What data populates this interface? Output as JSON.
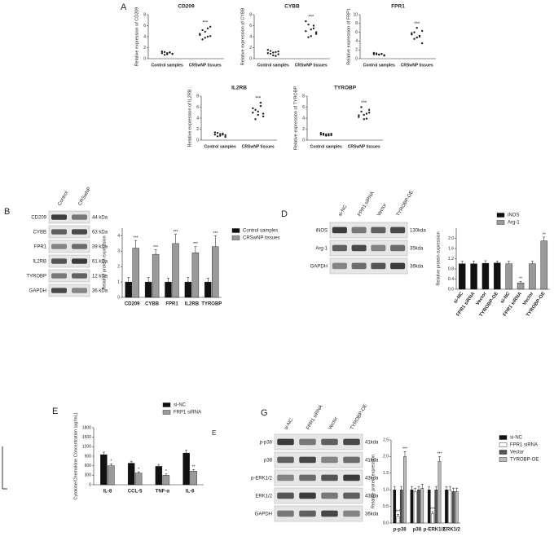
{
  "panel_labels": [
    "A",
    "B",
    "D",
    "E",
    "G",
    "E"
  ],
  "blots": [
    {
      "lanes": [
        "Control",
        "CRSwNP"
      ],
      "rows": [
        {
          "name": "CD209",
          "size": "44 kDa"
        },
        {
          "name": "CYBB",
          "size": "63 kDa"
        },
        {
          "name": "FPR1",
          "size": "39 kDa"
        },
        {
          "name": "IL2RB",
          "size": "61 kDa"
        },
        {
          "name": "TYROBP",
          "size": "12 kDa"
        },
        {
          "name": "GAPDH",
          "size": "36 kDa"
        }
      ]
    },
    {
      "lanes": [
        "si-NC",
        "FPR1 siRNA",
        "Vector",
        "TYROBP-OE"
      ],
      "rows": [
        {
          "name": "iNOS",
          "size": "130kda"
        },
        {
          "name": "Arg-1",
          "size": "35kda"
        },
        {
          "name": "GAPDH",
          "size": "36kda"
        }
      ]
    },
    {
      "lanes": [
        "si-NC",
        "FPR1 siRNA",
        "Vector",
        "TYROBP-OE"
      ],
      "rows": [
        {
          "name": "p-p38",
          "size": "41kda"
        },
        {
          "name": "p38",
          "size": "41kda"
        },
        {
          "name": "p-ERK1/2",
          "size": "43kda"
        },
        {
          "name": "ERK1/2",
          "size": "43kda"
        },
        {
          "name": "GAPDH",
          "size": "36kda"
        }
      ]
    }
  ],
  "chart_data": [
    {
      "type": "dot",
      "title": "CD209",
      "y_label": "Relative expression of CD209",
      "categories": [
        "Control samples",
        "CRSwNP tissues"
      ],
      "values": [
        [
          1.0,
          1.2,
          0.8,
          1.1,
          0.9,
          1.3,
          0.7,
          1.0,
          1.15,
          0.85
        ],
        [
          4.5,
          5.2,
          3.8,
          4.0,
          5.8,
          4.3,
          3.5,
          4.9,
          5.5,
          4.1
        ]
      ],
      "annotations": [
        null,
        "***"
      ],
      "ylim": [
        0,
        8
      ],
      "yticks": [
        0,
        2,
        4,
        6,
        8
      ],
      "color": "#222222"
    },
    {
      "type": "dot",
      "title": "CYBB",
      "y_label": "Relative expression of CYBB",
      "categories": [
        "Control samples",
        "CRSwNP tissues"
      ],
      "values": [
        [
          1.0,
          1.4,
          0.6,
          1.2,
          0.8,
          1.6,
          0.9,
          1.1,
          0.5,
          1.3
        ],
        [
          5.0,
          6.2,
          4.1,
          5.5,
          4.8,
          6.8,
          3.9,
          5.3,
          6.0,
          4.5
        ]
      ],
      "annotations": [
        null,
        "***"
      ],
      "ylim": [
        0,
        8
      ],
      "yticks": [
        0,
        2,
        4,
        6,
        8
      ],
      "color": "#222222"
    },
    {
      "type": "dot",
      "title": "FPR1",
      "y_label": "Relative expression of FRP1",
      "categories": [
        "Control samples",
        "CRSwNP tissues"
      ],
      "values": [
        [
          1.0,
          1.2,
          0.9,
          1.1,
          0.8,
          1.3,
          1.0,
          0.95,
          1.05,
          0.7
        ],
        [
          5.5,
          6.0,
          4.8,
          5.2,
          6.3,
          5.8,
          4.5,
          7.0,
          5.0,
          3.5
        ]
      ],
      "annotations": [
        null,
        "***"
      ],
      "ylim": [
        0,
        10
      ],
      "yticks": [
        0,
        2,
        4,
        6,
        8,
        10
      ],
      "color": "#222222"
    },
    {
      "type": "dot",
      "title": "IL2RB",
      "y_label": "Relative expression of IL2RB",
      "categories": [
        "Control samples",
        "CRSwNP tissues"
      ],
      "values": [
        [
          1.0,
          1.3,
          0.8,
          1.2,
          0.9,
          1.4,
          0.7,
          1.1,
          1.0,
          0.6
        ],
        [
          5.0,
          5.5,
          4.6,
          6.2,
          4.3,
          5.8,
          3.8,
          5.2,
          6.8,
          4.8
        ]
      ],
      "annotations": [
        null,
        "***"
      ],
      "ylim": [
        0,
        8
      ],
      "yticks": [
        0,
        2,
        4,
        6,
        8
      ],
      "color": "#222222"
    },
    {
      "type": "dot",
      "title": "TYROBP",
      "y_label": "Relative expression of TYROBP",
      "categories": [
        "Control samples",
        "CRSwNP tissues"
      ],
      "values": [
        [
          1.0,
          1.2,
          0.8,
          1.1,
          0.9,
          1.3,
          0.95,
          1.05,
          0.85,
          1.15
        ],
        [
          4.5,
          5.2,
          3.8,
          4.8,
          5.5,
          4.2,
          6.0,
          4.6,
          3.9,
          5.0
        ]
      ],
      "annotations": [
        null,
        "***"
      ],
      "ylim": [
        0,
        8
      ],
      "yticks": [
        0,
        2,
        4,
        6,
        8
      ],
      "color": "#222222"
    },
    {
      "type": "bar",
      "y_label": "Relative protein expression",
      "categories": [
        "CD209",
        "CYBB",
        "FPR1",
        "IL2RB",
        "TYROBP"
      ],
      "series": [
        {
          "name": "Control samples",
          "color": "#111111",
          "values": [
            1.0,
            1.0,
            1.0,
            1.0,
            1.0
          ],
          "errors": [
            0.3,
            0.3,
            0.25,
            0.3,
            0.25
          ],
          "annotations": [
            null,
            null,
            null,
            null,
            null
          ]
        },
        {
          "name": "CRSwNP tissues",
          "color": "#9a9a9a",
          "values": [
            3.2,
            2.8,
            3.5,
            2.9,
            3.3
          ],
          "errors": [
            0.5,
            0.3,
            0.6,
            0.4,
            0.7
          ],
          "annotations": [
            "***",
            "***",
            "***",
            "***",
            "***"
          ]
        }
      ],
      "ylim": [
        0,
        4.5
      ],
      "yticks": [
        0,
        1,
        2,
        3,
        4
      ]
    },
    {
      "type": "bar",
      "y_label": "Relative protein expression",
      "categories": [
        "si-NC",
        "FPR1 siRNA",
        "Vector",
        "TYROBP-OE",
        "si-NC",
        "FPR1 siRNA",
        "Vector",
        "TYROBP-OE"
      ],
      "series": [
        {
          "name": "iNOS",
          "color": "#111111",
          "values": [
            1.0,
            1.0,
            1.02,
            1.03,
            null,
            null,
            null,
            null
          ],
          "errors": [
            0.1,
            0.1,
            0.1,
            0.08,
            null,
            null,
            null,
            null
          ],
          "annotations": [
            null,
            null,
            null,
            null,
            null,
            null,
            null,
            null
          ]
        },
        {
          "name": "Arg-1",
          "color": "#9a9a9a",
          "values": [
            null,
            null,
            null,
            null,
            1.0,
            0.25,
            1.0,
            1.9
          ],
          "errors": [
            null,
            null,
            null,
            null,
            0.1,
            0.06,
            0.1,
            0.15
          ],
          "annotations": [
            null,
            null,
            null,
            null,
            null,
            "**",
            null,
            "**"
          ]
        }
      ],
      "ylim": [
        0,
        2.4
      ],
      "yticks": [
        {
          "value": 0,
          "label": "0.0"
        },
        0.4,
        0.8,
        1.2,
        1.6,
        {
          "value": 2,
          "label": "2.0"
        }
      ]
    },
    {
      "type": "bar",
      "y_label": "Cytokine/Chemokine Concentration (pg/mL)",
      "categories": [
        "IL-8",
        "CCL-5",
        "TNF-α",
        "IL-6"
      ],
      "series": [
        {
          "name": "si-NC",
          "color": "#111111",
          "values": [
            950,
            680,
            580,
            1000
          ],
          "errors": [
            80,
            60,
            60,
            90
          ],
          "annotations": [
            null,
            null,
            null,
            null
          ]
        },
        {
          "name": "FRP1 siRNA",
          "color": "#9a9a9a",
          "values": [
            600,
            370,
            300,
            430
          ],
          "errors": [
            60,
            40,
            40,
            50
          ],
          "annotations": [
            "*",
            "*",
            "*",
            "**"
          ]
        }
      ],
      "ylim": [
        0,
        1800
      ],
      "yticks": [
        0,
        300,
        600,
        900,
        1200,
        1500,
        1800
      ]
    },
    {
      "type": "bar",
      "y_label": "Relative protein expression",
      "categories": [
        "p-p38",
        "p38",
        "p-ERK1/2",
        "ERK1/2"
      ],
      "series": [
        {
          "name": "si-NC",
          "color": "#111111",
          "values": [
            1.0,
            1.0,
            1.0,
            1.0
          ],
          "errors": [
            0.1,
            0.1,
            0.1,
            0.1
          ],
          "annotations": [
            null,
            null,
            null,
            null
          ]
        },
        {
          "name": "FPR1 siRNA",
          "color": "#ffffff",
          "values": [
            0.2,
            0.95,
            0.28,
            1.0
          ],
          "errors": [
            0.06,
            0.1,
            0.06,
            0.1
          ],
          "annotations": [
            "***",
            null,
            "***",
            null
          ]
        },
        {
          "name": "Vector",
          "color": "#555555",
          "values": [
            1.0,
            1.0,
            1.0,
            0.95
          ],
          "errors": [
            0.1,
            0.1,
            0.1,
            0.1
          ],
          "annotations": [
            null,
            null,
            null,
            null
          ]
        },
        {
          "name": "TYROBP-OE",
          "color": "#bbbbbb",
          "values": [
            2.0,
            1.05,
            1.85,
            0.95
          ],
          "errors": [
            0.15,
            0.12,
            0.15,
            0.1
          ],
          "annotations": [
            "***",
            null,
            "***",
            null
          ]
        }
      ],
      "ylim": [
        0,
        2.5
      ],
      "yticks": [
        {
          "value": 0,
          "label": "0.0"
        },
        0.5,
        {
          "value": 1,
          "label": "1.0"
        },
        1.5,
        {
          "value": 2,
          "label": "2.0"
        },
        2.5
      ]
    }
  ]
}
